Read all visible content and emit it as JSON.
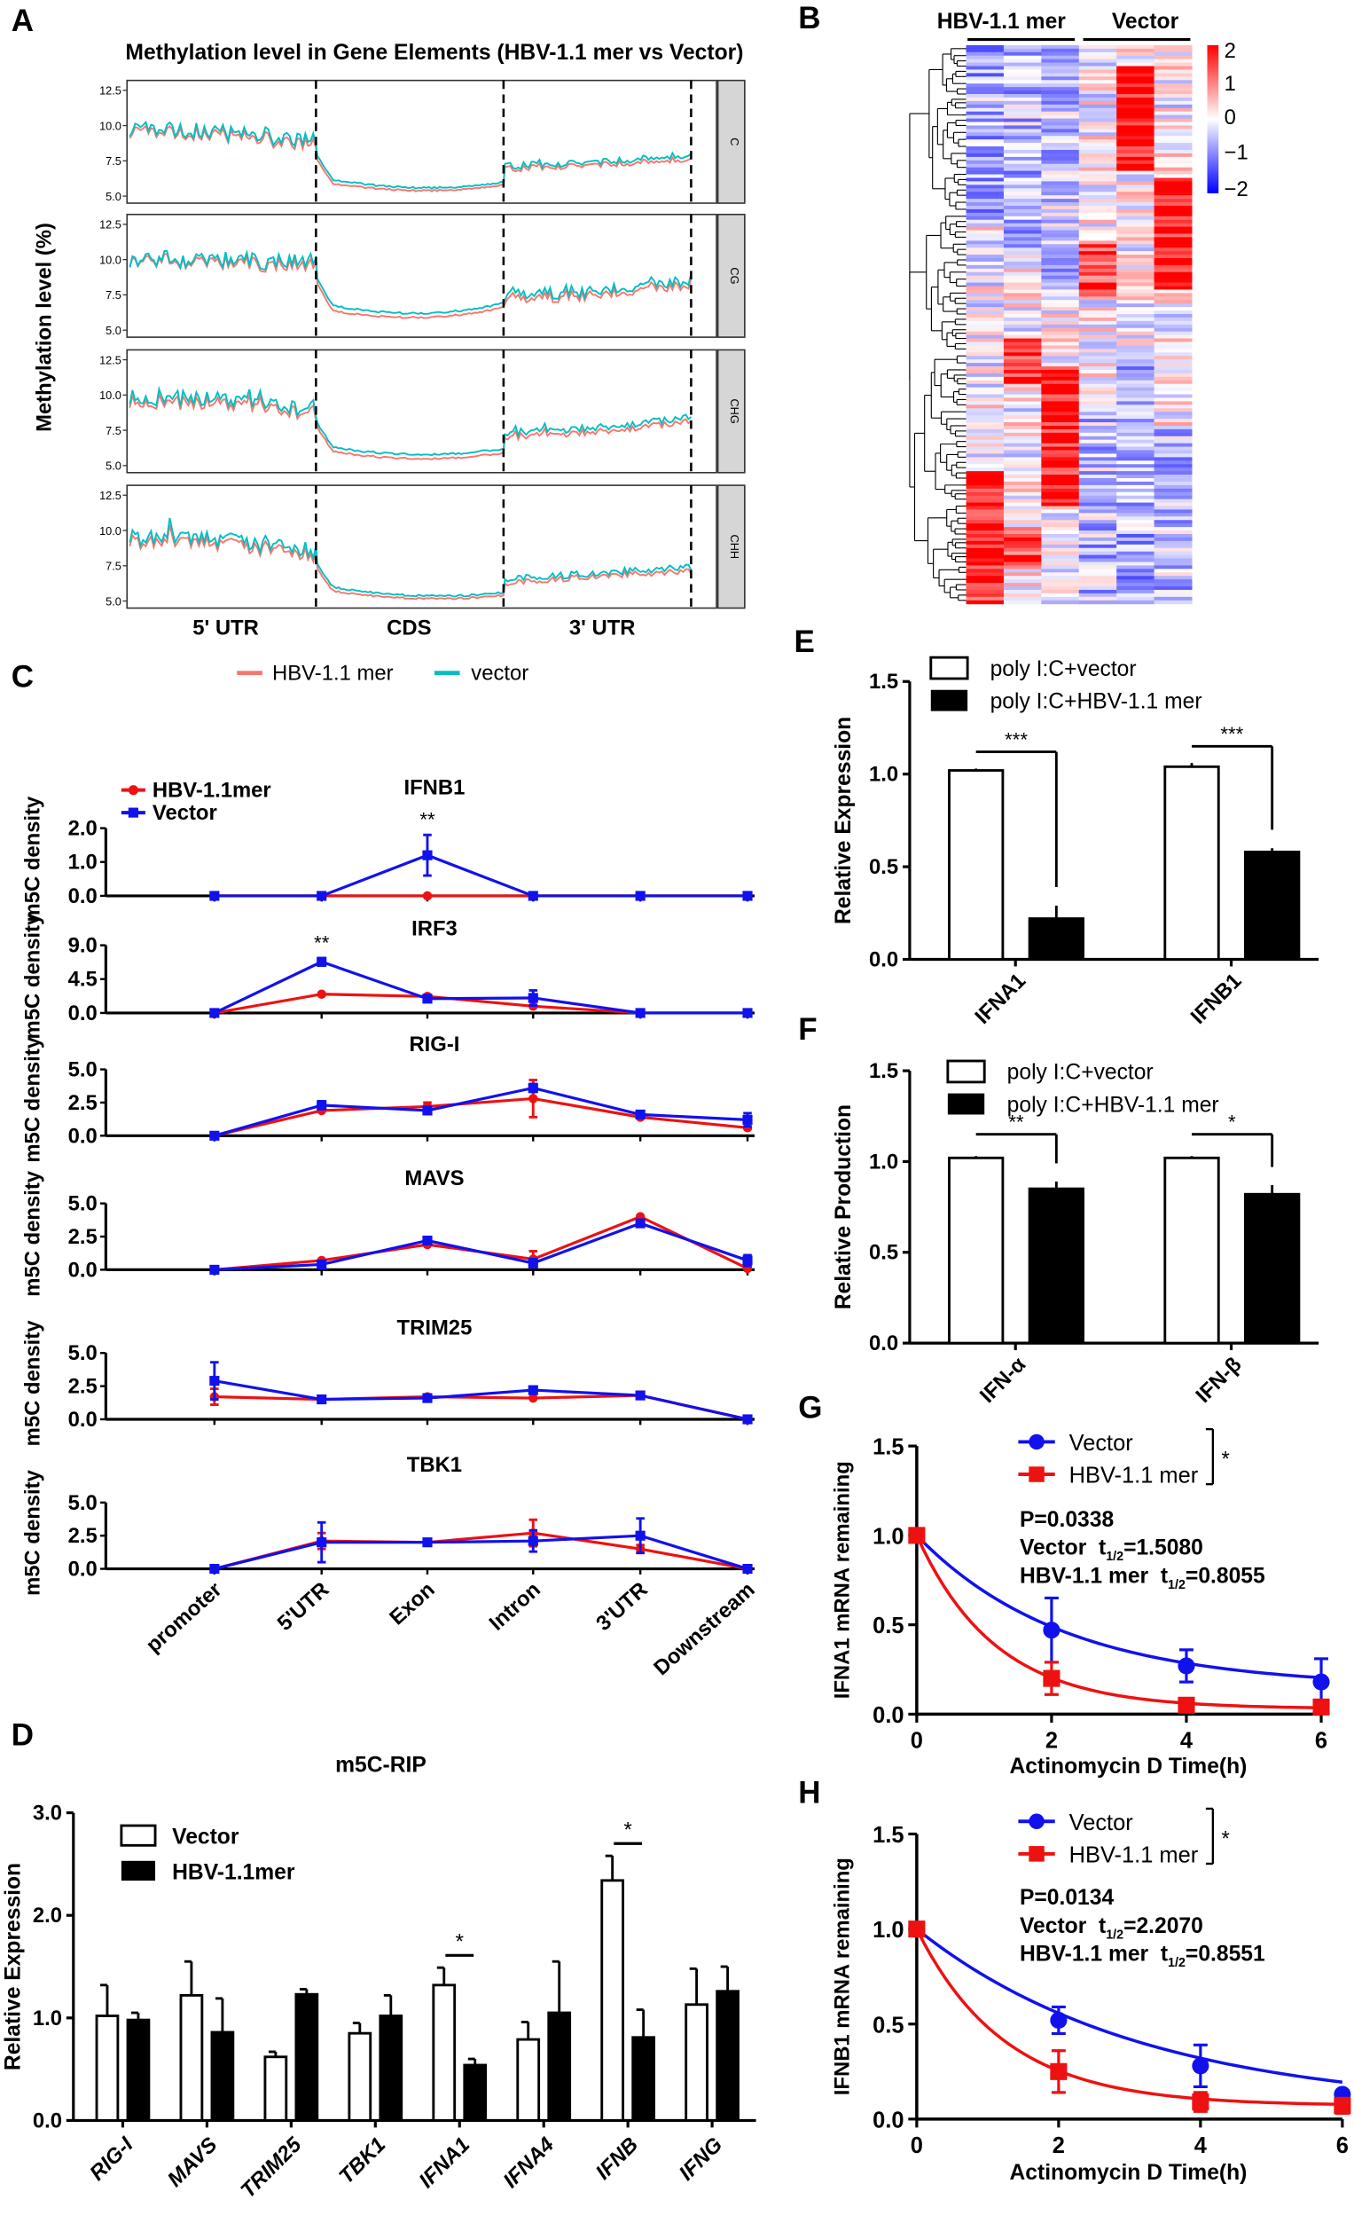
{
  "panel_labels": [
    "A",
    "B",
    "C",
    "D",
    "E",
    "F",
    "G",
    "H"
  ],
  "chart_data": [
    {
      "panel": "A",
      "type": "line",
      "title": "Methylation level in Gene Elements (HBV-1.1 mer vs Vector)",
      "ylabel": "Methylation level (%)",
      "regions": [
        "5' UTR",
        "CDS",
        "3' UTR"
      ],
      "facets": [
        "C",
        "CG",
        "CHG",
        "CHH"
      ],
      "yticks": [
        "12.5",
        "10.0",
        "7.5",
        "5.0"
      ],
      "ylim": [
        5.0,
        12.5
      ],
      "profile_points": [
        "5' UTR start",
        "5' UTR mid",
        "5' UTR end",
        "CDS start",
        "CDS mid",
        "CDS end",
        "3' UTR start",
        "3' UTR mid",
        "3' UTR end"
      ],
      "series": [
        {
          "name": "HBV-1.1 mer",
          "color": "#f8766d",
          "profiles": {
            "C": [
              9.6,
              9.3,
              8.6,
              6.1,
              5.4,
              5.8,
              6.9,
              7.2,
              7.6
            ],
            "CG": [
              10.0,
              9.8,
              9.5,
              6.6,
              5.9,
              6.6,
              7.0,
              7.6,
              8.2
            ],
            "CHG": [
              9.6,
              9.3,
              8.7,
              6.2,
              5.5,
              5.9,
              7.0,
              7.4,
              8.1
            ],
            "CHH": [
              9.2,
              9.0,
              8.2,
              5.9,
              5.2,
              5.4,
              6.2,
              6.8,
              7.1
            ]
          }
        },
        {
          "name": "vector",
          "color": "#00bfc4",
          "profiles": {
            "C": [
              9.8,
              9.5,
              8.9,
              6.4,
              5.6,
              6.0,
              7.1,
              7.4,
              7.9
            ],
            "CG": [
              10.1,
              10.0,
              9.8,
              7.0,
              6.2,
              6.9,
              7.3,
              7.9,
              8.5
            ],
            "CHG": [
              9.9,
              9.6,
              9.0,
              6.5,
              5.8,
              6.2,
              7.3,
              7.7,
              8.4
            ],
            "CHH": [
              9.5,
              9.3,
              8.5,
              6.2,
              5.4,
              5.6,
              6.5,
              7.0,
              7.4
            ]
          }
        }
      ],
      "legend_position": "bottom"
    },
    {
      "panel": "B",
      "type": "heatmap",
      "column_groups": [
        {
          "label": "HBV-1.1 mer",
          "columns": 3
        },
        {
          "label": "Vector",
          "columns": 3
        }
      ],
      "colorbar_ticks": [
        "2",
        "1",
        "0",
        "−1",
        "−2"
      ],
      "range": [
        -2,
        2
      ],
      "colors": {
        "low": "#0000ff",
        "mid": "#ffffff",
        "high": "#ff0000"
      },
      "row_dendrogram": true
    },
    {
      "panel": "C",
      "type": "line",
      "ylabel": "m5C density",
      "categories": [
        "promoter",
        "5'UTR",
        "Exon",
        "Intron",
        "3'UTR",
        "Downstream"
      ],
      "legend": [
        {
          "name": "HBV-1.1mer",
          "color": "#ee1111",
          "marker": "circle"
        },
        {
          "name": "Vector",
          "color": "#1111ee",
          "marker": "square"
        }
      ],
      "legend_position": "top-left",
      "subplots": [
        {
          "title": "IFNB1",
          "yticks": [
            "0.0",
            "1.0",
            "2.0"
          ],
          "ymax": 2.0,
          "hbv": {
            "values": [
              0,
              0,
              0,
              0,
              0,
              0
            ],
            "err": [
              0,
              0,
              0,
              0,
              0,
              0
            ]
          },
          "vector": {
            "values": [
              0,
              0,
              1.2,
              0,
              0,
              0
            ],
            "err": [
              0,
              0,
              0.6,
              0,
              0,
              0
            ]
          },
          "significance": {
            "category": "Exon",
            "label": "**"
          }
        },
        {
          "title": "IRF3",
          "yticks": [
            "0.0",
            "4.5",
            "9.0"
          ],
          "ymax": 9.0,
          "hbv": {
            "values": [
              0,
              2.5,
              2.2,
              0.9,
              0,
              0
            ],
            "err": [
              0,
              0,
              0,
              0,
              0,
              0
            ]
          },
          "vector": {
            "values": [
              0,
              6.8,
              1.9,
              2.0,
              0,
              0
            ],
            "err": [
              0,
              0.5,
              0,
              1.0,
              0,
              0
            ]
          },
          "significance": {
            "category": "5'UTR",
            "label": "**"
          }
        },
        {
          "title": "RIG-I",
          "yticks": [
            "0.0",
            "2.5",
            "5.0"
          ],
          "ymax": 5.0,
          "hbv": {
            "values": [
              0,
              1.9,
              2.2,
              2.8,
              1.4,
              0.6
            ],
            "err": [
              0,
              0,
              0.3,
              1.4,
              0,
              0
            ]
          },
          "vector": {
            "values": [
              0,
              2.3,
              1.9,
              3.6,
              1.6,
              1.2
            ],
            "err": [
              0,
              0.3,
              0,
              0.3,
              0.2,
              0.5
            ]
          }
        },
        {
          "title": "MAVS",
          "yticks": [
            "0.0",
            "2.5",
            "5.0"
          ],
          "ymax": 5.0,
          "hbv": {
            "values": [
              0,
              0.7,
              1.9,
              0.8,
              4.0,
              0.1
            ],
            "err": [
              0,
              0,
              0,
              0.6,
              0,
              0
            ]
          },
          "vector": {
            "values": [
              0,
              0.4,
              2.2,
              0.5,
              3.5,
              0.7
            ],
            "err": [
              0,
              0,
              0,
              0.3,
              0,
              0.4
            ]
          }
        },
        {
          "title": "TRIM25",
          "yticks": [
            "0.0",
            "2.5",
            "5.0"
          ],
          "ymax": 5.0,
          "hbv": {
            "values": [
              1.7,
              1.5,
              1.7,
              1.6,
              1.8,
              0
            ],
            "err": [
              0.6,
              0,
              0,
              0,
              0,
              0
            ]
          },
          "vector": {
            "values": [
              2.9,
              1.5,
              1.6,
              2.2,
              1.8,
              0
            ],
            "err": [
              1.4,
              0,
              0,
              0,
              0,
              0
            ]
          }
        },
        {
          "title": "TBK1",
          "yticks": [
            "0.0",
            "2.5",
            "5.0"
          ],
          "ymax": 5.0,
          "hbv": {
            "values": [
              0,
              2.1,
              2.0,
              2.7,
              1.5,
              0
            ],
            "err": [
              0,
              0.6,
              0,
              1.0,
              0.3,
              0
            ]
          },
          "vector": {
            "values": [
              0,
              2.0,
              2.0,
              2.1,
              2.5,
              0
            ],
            "err": [
              0,
              1.5,
              0,
              0.8,
              1.3,
              0
            ]
          }
        }
      ]
    },
    {
      "panel": "D",
      "type": "bar",
      "title": "m5C-RIP",
      "ylabel": "Relative Expression",
      "ylim": [
        0,
        3.0
      ],
      "yticks": [
        "0.0",
        "1.0",
        "2.0",
        "3.0"
      ],
      "categories": [
        "RIG-I",
        "MAVS",
        "TRIM25",
        "TBK1",
        "IFNA1",
        "IFNA4",
        "IFNB",
        "IFNG"
      ],
      "series": [
        {
          "name": "Vector",
          "fill": "#ffffff",
          "values": [
            1.02,
            1.22,
            0.62,
            0.85,
            1.32,
            0.79,
            2.34,
            1.13
          ],
          "err": [
            0.3,
            0.33,
            0.05,
            0.1,
            0.17,
            0.17,
            0.24,
            0.35
          ]
        },
        {
          "name": "HBV-1.1mer",
          "fill": "#000000",
          "values": [
            0.98,
            0.86,
            1.23,
            1.02,
            0.54,
            1.05,
            0.81,
            1.26
          ],
          "err": [
            0.07,
            0.33,
            0.05,
            0.2,
            0.06,
            0.5,
            0.27,
            0.24
          ]
        }
      ],
      "significance": [
        {
          "category": "IFNA1",
          "label": "*"
        },
        {
          "category": "IFNB",
          "label": "*"
        }
      ],
      "legend_position": "top-left"
    },
    {
      "panel": "E",
      "type": "bar",
      "ylabel": "Relative Expression",
      "ylim": [
        0,
        1.5
      ],
      "yticks": [
        "0.0",
        "0.5",
        "1.0",
        "1.5"
      ],
      "categories": [
        "IFNA1",
        "IFNB1"
      ],
      "series": [
        {
          "name": "poly I:C+vector",
          "fill": "#ffffff",
          "values": [
            1.02,
            1.04
          ],
          "err": [
            0.01,
            0.02
          ]
        },
        {
          "name": "poly I:C+HBV-1.1 mer",
          "fill": "#000000",
          "values": [
            0.22,
            0.58
          ],
          "err": [
            0.07,
            0.02
          ]
        }
      ],
      "significance": [
        {
          "category": "IFNA1",
          "label": "***"
        },
        {
          "category": "IFNB1",
          "label": "***"
        }
      ],
      "legend_position": "top"
    },
    {
      "panel": "F",
      "type": "bar",
      "ylabel": "Relative Production",
      "ylim": [
        0,
        1.5
      ],
      "yticks": [
        "0.0",
        "0.5",
        "1.0",
        "1.5"
      ],
      "categories": [
        "IFN-α",
        "IFN-β"
      ],
      "series": [
        {
          "name": "poly I:C+vector",
          "fill": "#ffffff",
          "values": [
            1.02,
            1.02
          ],
          "err": [
            0.01,
            0.01
          ]
        },
        {
          "name": "poly I:C+HBV-1.1 mer",
          "fill": "#000000",
          "values": [
            0.85,
            0.82
          ],
          "err": [
            0.04,
            0.05
          ]
        }
      ],
      "significance": [
        {
          "category": "IFN-α",
          "label": "**"
        },
        {
          "category": "IFN-β",
          "label": "*"
        }
      ],
      "legend_position": "top"
    },
    {
      "panel": "G",
      "type": "line",
      "xlabel": "Actinomycin D Time(h)",
      "ylabel": "IFNA1 mRNA remaining",
      "x": [
        0,
        2,
        4,
        6
      ],
      "xticks": [
        "0",
        "2",
        "4",
        "6"
      ],
      "yticks": [
        "0.0",
        "0.5",
        "1.0",
        "1.5"
      ],
      "ylim": [
        0,
        1.5
      ],
      "series": [
        {
          "name": "Vector",
          "color": "#1111ee",
          "marker": "circle",
          "values": [
            1.0,
            0.47,
            0.27,
            0.18
          ],
          "err": [
            0,
            0.18,
            0.09,
            0.13
          ],
          "t_half": "1.5080"
        },
        {
          "name": "HBV-1.1 mer",
          "color": "#ee1111",
          "marker": "square",
          "values": [
            1.0,
            0.2,
            0.05,
            0.04
          ],
          "err": [
            0,
            0.09,
            0.01,
            0.01
          ],
          "t_half": "0.8055"
        }
      ],
      "legend_sig": "*",
      "p_value": "P=0.0338",
      "stat_lines": [
        {
          "prefix": "Vector  t",
          "sub": "1/2",
          "value": "=1.5080",
          "color": "#1111ee"
        },
        {
          "prefix": "HBV-1.1 mer  t",
          "sub": "1/2",
          "value": "=0.8055",
          "color": "#ee1111"
        }
      ],
      "legend_position": "top"
    },
    {
      "panel": "H",
      "type": "line",
      "xlabel": "Actinomycin D Time(h)",
      "ylabel": "IFNB1 mRNA remaining",
      "x": [
        0,
        2,
        4,
        6
      ],
      "xticks": [
        "0",
        "2",
        "4",
        "6"
      ],
      "yticks": [
        "0.0",
        "0.5",
        "1.0",
        "1.5"
      ],
      "ylim": [
        0,
        1.5
      ],
      "series": [
        {
          "name": "Vector",
          "color": "#1111ee",
          "marker": "circle",
          "values": [
            1.0,
            0.52,
            0.28,
            0.13
          ],
          "err": [
            0,
            0.07,
            0.11,
            0.02
          ],
          "t_half": "2.2070"
        },
        {
          "name": "HBV-1.1 mer",
          "color": "#ee1111",
          "marker": "square",
          "values": [
            1.0,
            0.25,
            0.09,
            0.07
          ],
          "err": [
            0,
            0.11,
            0.05,
            0.04
          ],
          "t_half": "0.8551"
        }
      ],
      "legend_sig": "*",
      "p_value": "P=0.0134",
      "stat_lines": [
        {
          "prefix": "Vector  t",
          "sub": "1/2",
          "value": "=2.2070",
          "color": "#1111ee"
        },
        {
          "prefix": "HBV-1.1 mer  t",
          "sub": "1/2",
          "value": "=0.8551",
          "color": "#ee1111"
        }
      ],
      "legend_position": "top"
    }
  ]
}
